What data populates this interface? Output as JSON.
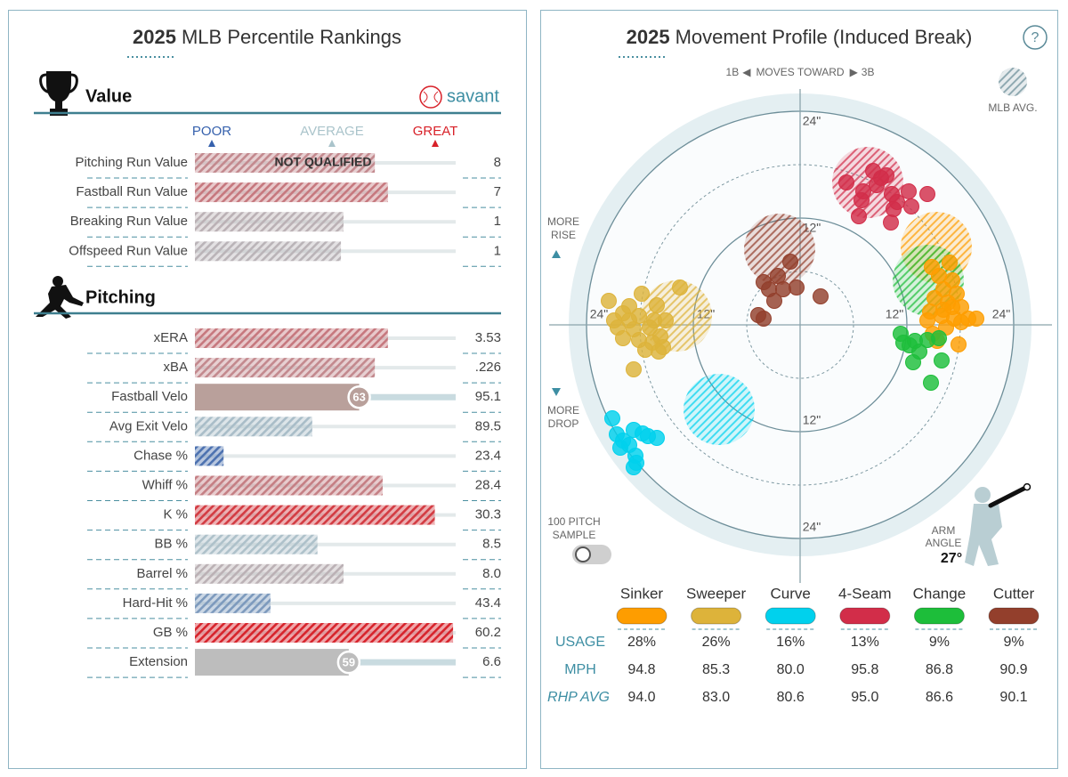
{
  "percentile_rankings": {
    "title_year": "2025",
    "title": "MLB Percentile Rankings",
    "scale": {
      "poor": "POOR",
      "average": "AVERAGE",
      "great": "GREAT"
    },
    "percentile_range": [
      0,
      100
    ],
    "sections": [
      {
        "heading": "Value",
        "brand": "savant",
        "rows": [
          {
            "label": "Pitching Run Value",
            "percentile": 69,
            "note": "NOT QUALIFIED",
            "value": "8"
          },
          {
            "label": "Fastball Run Value",
            "percentile": 74,
            "value": "7"
          },
          {
            "label": "Breaking Run Value",
            "percentile": 57,
            "value": "1"
          },
          {
            "label": "Offspeed Run Value",
            "percentile": 56,
            "value": "1"
          }
        ]
      },
      {
        "heading": "Pitching",
        "rows": [
          {
            "label": "xERA",
            "percentile": 74,
            "value": "3.53"
          },
          {
            "label": "xBA",
            "percentile": 69,
            "value": ".226"
          },
          {
            "label": "Fastball Velo",
            "percentile": 63,
            "show_percentile": true,
            "color": "#b9a09b",
            "value": "95.1"
          },
          {
            "label": "Avg Exit Velo",
            "percentile": 45,
            "value": "89.5"
          },
          {
            "label": "Chase %",
            "percentile": 11,
            "value": "23.4"
          },
          {
            "label": "Whiff %",
            "percentile": 72,
            "value": "28.4"
          },
          {
            "label": "K %",
            "percentile": 92,
            "value": "30.3"
          },
          {
            "label": "BB %",
            "percentile": 47,
            "value": "8.5"
          },
          {
            "label": "Barrel %",
            "percentile": 57,
            "value": "8.0"
          },
          {
            "label": "Hard-Hit %",
            "percentile": 29,
            "value": "43.4"
          },
          {
            "label": "GB %",
            "percentile": 99,
            "value": "60.2"
          },
          {
            "label": "Extension",
            "percentile": 59,
            "show_percentile": true,
            "color": "#bdbdbd",
            "value": "6.6"
          }
        ]
      }
    ]
  },
  "movement_profile": {
    "title_year": "2025",
    "title": "Movement Profile (Induced Break)",
    "help": "?",
    "direction": {
      "left": "1B",
      "label": "MOVES TOWARD",
      "right": "3B"
    },
    "legend": "MLB AVG.",
    "rise_label": [
      "MORE",
      "RISE"
    ],
    "drop_label": [
      "MORE",
      "DROP"
    ],
    "sample_label": [
      "100 PITCH",
      "SAMPLE"
    ],
    "arm_angle_label": [
      "ARM",
      "ANGLE"
    ],
    "arm_angle": {
      "value": 27,
      "label": "27°"
    },
    "rlim": 26,
    "rticks": [
      {
        "value": 12,
        "label": "12\""
      },
      {
        "value": 24,
        "label": "24\""
      }
    ],
    "minor_rticks": [
      6,
      18
    ],
    "row_labels": {
      "usage": "USAGE",
      "mph": "MPH",
      "rhp_avg": "RHP AVG"
    },
    "pitches": [
      {
        "name": "Sinker",
        "color": "#fe9d00",
        "usage": "28%",
        "mph": "94.8",
        "rhp_avg": "94.0",
        "mlb_avg": {
          "x": 15.3,
          "y": 8.7
        },
        "x": [
          16.8,
          14.8,
          15.6,
          17.1,
          16.1,
          17.6,
          15.1,
          16.6,
          18.1,
          14.6,
          15.9,
          17.3,
          18.9,
          19.8,
          14.3,
          16.4,
          14.9,
          18.1,
          15.4,
          17.8,
          17.1,
          16.1
        ],
        "y": [
          7.0,
          6.5,
          5.5,
          5.0,
          4.0,
          3.5,
          3.0,
          2.5,
          2.0,
          1.5,
          1.0,
          0.7,
          0.7,
          0.7,
          0.5,
          -0.3,
          -1.0,
          0.3,
          -1.8,
          -2.2,
          2.0,
          1.7
        ]
      },
      {
        "name": "Sweeper",
        "color": "#ddb33a",
        "usage": "26%",
        "mph": "85.3",
        "rhp_avg": "83.0",
        "mlb_avg": {
          "x": -13.9,
          "y": 1.0
        },
        "x": [
          -21.5,
          -19.2,
          -17.8,
          -16.1,
          -13.5,
          -19.9,
          -18.1,
          -16.4,
          -15.1,
          -20.5,
          -18.7,
          -16.9,
          -15.7,
          -19.9,
          -18.1,
          -16.6,
          -15.4,
          -17.4,
          -15.9,
          -18.7,
          -20.9,
          -19.2
        ],
        "y": [
          2.7,
          2.1,
          3.5,
          2.2,
          4.2,
          1.3,
          1.0,
          0.5,
          0.5,
          -0.3,
          -0.5,
          -0.3,
          -1.3,
          -1.5,
          -1.7,
          -2.0,
          -2.5,
          -2.8,
          -3.0,
          -5.0,
          0.5,
          0.5
        ]
      },
      {
        "name": "Curve",
        "color": "#00d1ed",
        "usage": "16%",
        "mph": "80.0",
        "rhp_avg": "80.6",
        "mlb_avg": {
          "x": -9.1,
          "y": -9.5
        },
        "x": [
          -21.1,
          -20.6,
          -19.9,
          -18.7,
          -17.7,
          -16.1,
          -19.2,
          -20.2,
          -18.5,
          -18.4,
          -18.7,
          -17.1
        ],
        "y": [
          -10.5,
          -12.3,
          -13.0,
          -11.8,
          -12.2,
          -12.7,
          -13.5,
          -13.8,
          -14.7,
          -15.5,
          -16.0,
          -12.5
        ]
      },
      {
        "name": "4-Seam",
        "color": "#d22d49",
        "usage": "13%",
        "mph": "95.8",
        "rhp_avg": "95.0",
        "mlb_avg": {
          "x": 7.6,
          "y": 16.0
        },
        "x": [
          8.2,
          9.7,
          8.6,
          12.2,
          14.3,
          5.2,
          7.1,
          10.3,
          6.9,
          10.9,
          10.5,
          12.5,
          6.6,
          10.2,
          9.1
        ],
        "y": [
          17.3,
          16.8,
          15.7,
          15.0,
          14.7,
          16.0,
          15.0,
          14.7,
          14.0,
          13.8,
          13.0,
          13.3,
          12.2,
          11.5,
          16.5
        ]
      },
      {
        "name": "Change",
        "color": "#1dbe3a",
        "usage": "9%",
        "mph": "86.8",
        "rhp_avg": "86.6",
        "mlb_avg": {
          "x": 14.4,
          "y": 5.0
        },
        "x": [
          11.3,
          12.3,
          12.9,
          14.3,
          15.6,
          12.7,
          15.9,
          14.7,
          13.4,
          11.6
        ],
        "y": [
          -1.0,
          -2.3,
          -1.8,
          -1.7,
          -1.5,
          -4.2,
          -4.0,
          -6.5,
          -3.0,
          -2.0
        ]
      },
      {
        "name": "Cutter",
        "color": "#933f2c",
        "usage": "9%",
        "mph": "90.9",
        "rhp_avg": "90.1",
        "mlb_avg": {
          "x": -2.3,
          "y": 8.5
        },
        "x": [
          -1.1,
          -2.5,
          -4.1,
          -1.9,
          -0.4,
          2.3,
          -2.9,
          -4.7,
          -4.1,
          -3.5
        ],
        "y": [
          7.1,
          5.5,
          4.8,
          4.0,
          4.2,
          3.2,
          2.7,
          1.1,
          0.7,
          4.0
        ]
      }
    ]
  }
}
